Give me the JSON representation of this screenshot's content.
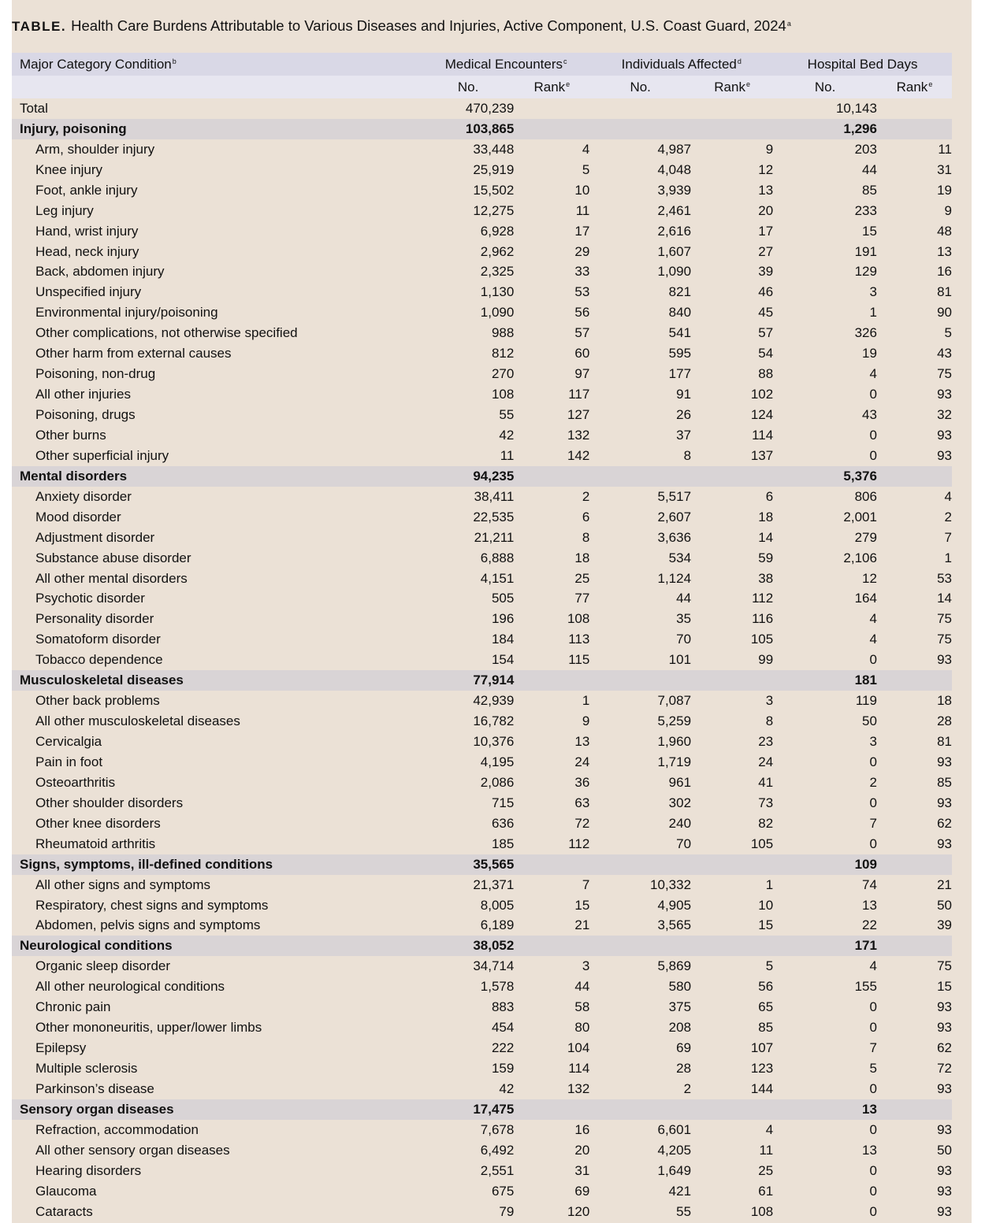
{
  "title": {
    "label": "TABLE.",
    "text": "Health Care Burdens Attributable to Various Diseases and Injuries, Active Component, U.S. Coast Guard, 2024",
    "footnote": "a"
  },
  "header": {
    "condition": "Major Category Condition",
    "condition_fn": "b",
    "groups": [
      {
        "label": "Medical Encounters",
        "fn": "c"
      },
      {
        "label": "Individuals Affected",
        "fn": "d"
      },
      {
        "label": "Hospital Bed Days",
        "fn": ""
      }
    ],
    "no": "No.",
    "rank": "Rank",
    "rank_fn": "e"
  },
  "colors": {
    "panel": "#ebe1d6",
    "header_top": "#d9d8e6",
    "header_sub": "#e7e6f0",
    "category_row": "#d9d4d6"
  },
  "rows": [
    {
      "type": "total",
      "c": [
        "Total",
        "470,239",
        "",
        "",
        "",
        "10,143",
        ""
      ]
    },
    {
      "type": "cat",
      "c": [
        "Injury, poisoning",
        "103,865",
        "",
        "",
        "",
        "1,296",
        ""
      ]
    },
    {
      "type": "item",
      "c": [
        "Arm, shoulder injury",
        "33,448",
        "4",
        "4,987",
        "9",
        "203",
        "11"
      ]
    },
    {
      "type": "item",
      "c": [
        "Knee injury",
        "25,919",
        "5",
        "4,048",
        "12",
        "44",
        "31"
      ]
    },
    {
      "type": "item",
      "c": [
        "Foot, ankle injury",
        "15,502",
        "10",
        "3,939",
        "13",
        "85",
        "19"
      ]
    },
    {
      "type": "item",
      "c": [
        "Leg injury",
        "12,275",
        "11",
        "2,461",
        "20",
        "233",
        "9"
      ]
    },
    {
      "type": "item",
      "c": [
        "Hand, wrist injury",
        "6,928",
        "17",
        "2,616",
        "17",
        "15",
        "48"
      ]
    },
    {
      "type": "item",
      "c": [
        "Head, neck injury",
        "2,962",
        "29",
        "1,607",
        "27",
        "191",
        "13"
      ]
    },
    {
      "type": "item",
      "c": [
        "Back, abdomen injury",
        "2,325",
        "33",
        "1,090",
        "39",
        "129",
        "16"
      ]
    },
    {
      "type": "item",
      "c": [
        "Unspecified injury",
        "1,130",
        "53",
        "821",
        "46",
        "3",
        "81"
      ]
    },
    {
      "type": "item",
      "c": [
        "Environmental injury/poisoning",
        "1,090",
        "56",
        "840",
        "45",
        "1",
        "90"
      ]
    },
    {
      "type": "item",
      "c": [
        "Other complications, not otherwise specified",
        "988",
        "57",
        "541",
        "57",
        "326",
        "5"
      ]
    },
    {
      "type": "item",
      "c": [
        "Other harm from external causes",
        "812",
        "60",
        "595",
        "54",
        "19",
        "43"
      ]
    },
    {
      "type": "item",
      "c": [
        "Poisoning, non-drug",
        "270",
        "97",
        "177",
        "88",
        "4",
        "75"
      ]
    },
    {
      "type": "item",
      "c": [
        "All other injuries",
        "108",
        "117",
        "91",
        "102",
        "0",
        "93"
      ]
    },
    {
      "type": "item",
      "c": [
        "Poisoning, drugs",
        "55",
        "127",
        "26",
        "124",
        "43",
        "32"
      ]
    },
    {
      "type": "item",
      "c": [
        "Other burns",
        "42",
        "132",
        "37",
        "114",
        "0",
        "93"
      ]
    },
    {
      "type": "item",
      "c": [
        "Other superficial injury",
        "11",
        "142",
        "8",
        "137",
        "0",
        "93"
      ]
    },
    {
      "type": "cat",
      "c": [
        "Mental disorders",
        "94,235",
        "",
        "",
        "",
        "5,376",
        ""
      ]
    },
    {
      "type": "item",
      "c": [
        "Anxiety disorder",
        "38,411",
        "2",
        "5,517",
        "6",
        "806",
        "4"
      ]
    },
    {
      "type": "item",
      "c": [
        "Mood disorder",
        "22,535",
        "6",
        "2,607",
        "18",
        "2,001",
        "2"
      ]
    },
    {
      "type": "item",
      "c": [
        "Adjustment disorder",
        "21,211",
        "8",
        "3,636",
        "14",
        "279",
        "7"
      ]
    },
    {
      "type": "item",
      "c": [
        "Substance abuse disorder",
        "6,888",
        "18",
        "534",
        "59",
        "2,106",
        "1"
      ]
    },
    {
      "type": "item",
      "c": [
        "All other mental disorders",
        "4,151",
        "25",
        "1,124",
        "38",
        "12",
        "53"
      ]
    },
    {
      "type": "item",
      "c": [
        "Psychotic disorder",
        "505",
        "77",
        "44",
        "112",
        "164",
        "14"
      ]
    },
    {
      "type": "item",
      "c": [
        "Personality disorder",
        "196",
        "108",
        "35",
        "116",
        "4",
        "75"
      ]
    },
    {
      "type": "item",
      "c": [
        "Somatoform disorder",
        "184",
        "113",
        "70",
        "105",
        "4",
        "75"
      ]
    },
    {
      "type": "item",
      "c": [
        "Tobacco dependence",
        "154",
        "115",
        "101",
        "99",
        "0",
        "93"
      ]
    },
    {
      "type": "cat",
      "c": [
        "Musculoskeletal diseases",
        "77,914",
        "",
        "",
        "",
        "181",
        ""
      ]
    },
    {
      "type": "item",
      "c": [
        "Other back problems",
        "42,939",
        "1",
        "7,087",
        "3",
        "119",
        "18"
      ]
    },
    {
      "type": "item",
      "c": [
        "All other musculoskeletal diseases",
        "16,782",
        "9",
        "5,259",
        "8",
        "50",
        "28"
      ]
    },
    {
      "type": "item",
      "c": [
        "Cervicalgia",
        "10,376",
        "13",
        "1,960",
        "23",
        "3",
        "81"
      ]
    },
    {
      "type": "item",
      "c": [
        "Pain in foot",
        "4,195",
        "24",
        "1,719",
        "24",
        "0",
        "93"
      ]
    },
    {
      "type": "item",
      "c": [
        "Osteoarthritis",
        "2,086",
        "36",
        "961",
        "41",
        "2",
        "85"
      ]
    },
    {
      "type": "item",
      "c": [
        "Other shoulder disorders",
        "715",
        "63",
        "302",
        "73",
        "0",
        "93"
      ]
    },
    {
      "type": "item",
      "c": [
        "Other knee disorders",
        "636",
        "72",
        "240",
        "82",
        "7",
        "62"
      ]
    },
    {
      "type": "item",
      "c": [
        "Rheumatoid arthritis",
        "185",
        "112",
        "70",
        "105",
        "0",
        "93"
      ]
    },
    {
      "type": "cat",
      "c": [
        "Signs, symptoms, ill-defined conditions",
        "35,565",
        "",
        "",
        "",
        "109",
        ""
      ]
    },
    {
      "type": "item",
      "c": [
        "All other signs and symptoms",
        "21,371",
        "7",
        "10,332",
        "1",
        "74",
        "21"
      ]
    },
    {
      "type": "item",
      "c": [
        "Respiratory, chest signs and symptoms",
        "8,005",
        "15",
        "4,905",
        "10",
        "13",
        "50"
      ]
    },
    {
      "type": "item",
      "c": [
        "Abdomen, pelvis signs and symptoms",
        "6,189",
        "21",
        "3,565",
        "15",
        "22",
        "39"
      ]
    },
    {
      "type": "cat",
      "c": [
        "Neurological conditions",
        "38,052",
        "",
        "",
        "",
        "171",
        ""
      ]
    },
    {
      "type": "item",
      "c": [
        "Organic sleep disorder",
        "34,714",
        "3",
        "5,869",
        "5",
        "4",
        "75"
      ]
    },
    {
      "type": "item",
      "c": [
        "All other neurological conditions",
        "1,578",
        "44",
        "580",
        "56",
        "155",
        "15"
      ]
    },
    {
      "type": "item",
      "c": [
        "Chronic pain",
        "883",
        "58",
        "375",
        "65",
        "0",
        "93"
      ]
    },
    {
      "type": "item",
      "c": [
        "Other mononeuritis, upper/lower limbs",
        "454",
        "80",
        "208",
        "85",
        "0",
        "93"
      ]
    },
    {
      "type": "item",
      "c": [
        "Epilepsy",
        "222",
        "104",
        "69",
        "107",
        "7",
        "62"
      ]
    },
    {
      "type": "item",
      "c": [
        "Multiple sclerosis",
        "159",
        "114",
        "28",
        "123",
        "5",
        "72"
      ]
    },
    {
      "type": "item",
      "c": [
        "Parkinson’s disease",
        "42",
        "132",
        "2",
        "144",
        "0",
        "93"
      ]
    },
    {
      "type": "cat",
      "c": [
        "Sensory organ diseases",
        "17,475",
        "",
        "",
        "",
        "13",
        ""
      ]
    },
    {
      "type": "item",
      "c": [
        "Refraction, accommodation",
        "7,678",
        "16",
        "6,601",
        "4",
        "0",
        "93"
      ]
    },
    {
      "type": "item",
      "c": [
        "All other sensory organ diseases",
        "6,492",
        "20",
        "4,205",
        "11",
        "13",
        "50"
      ]
    },
    {
      "type": "item",
      "c": [
        "Hearing disorders",
        "2,551",
        "31",
        "1,649",
        "25",
        "0",
        "93"
      ]
    },
    {
      "type": "item",
      "c": [
        "Glaucoma",
        "675",
        "69",
        "421",
        "61",
        "0",
        "93"
      ]
    },
    {
      "type": "item",
      "c": [
        "Cataracts",
        "79",
        "120",
        "55",
        "108",
        "0",
        "93"
      ]
    }
  ]
}
